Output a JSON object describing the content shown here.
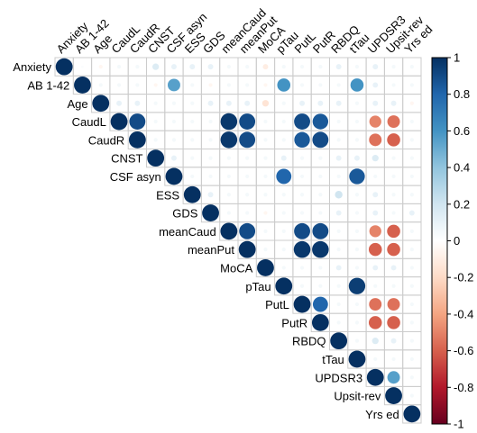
{
  "chart_data": {
    "type": "heatmap",
    "subtype": "correlation-upper-triangle",
    "marker": "circle",
    "title": "",
    "variables": [
      "Anxiety",
      "AB 1-42",
      "Age",
      "CaudL",
      "CaudR",
      "CNST",
      "CSF asyn",
      "ESS",
      "GDS",
      "meanCaud",
      "meanPut",
      "MoCA",
      "pTau",
      "PutL",
      "PutR",
      "RBDQ",
      "tTau",
      "UPDSR3",
      "Upsit-rev",
      "Yrs ed"
    ],
    "value_range": [
      -1,
      1
    ],
    "legend": {
      "position": "right",
      "ticks": [
        1,
        0.8,
        0.6,
        0.4,
        0.2,
        0,
        -0.2,
        -0.4,
        -0.6,
        -0.8,
        -1
      ],
      "tick_labels": [
        "1",
        "0.8",
        "0.6",
        "0.4",
        "0.2",
        "0",
        "-0.2",
        "-0.4",
        "-0.6",
        "-0.8",
        "-1"
      ],
      "colors": [
        "#053061",
        "#2166ac",
        "#4393c3",
        "#92c5de",
        "#d1e5f0",
        "#ffffff",
        "#fddbc7",
        "#f4a582",
        "#d6604d",
        "#b2182b",
        "#67001f"
      ]
    },
    "grid": true,
    "matrix": [
      [
        1,
        0.02,
        -0.05,
        0.05,
        0.05,
        0.15,
        0.1,
        0.1,
        0.1,
        0.05,
        0.05,
        -0.1,
        0.05,
        0.05,
        0.05,
        0.1,
        0.05,
        0.1,
        0.05,
        0.05
      ],
      [
        0.02,
        1,
        0.05,
        0.05,
        0.05,
        -0.05,
        0.55,
        0.05,
        -0.05,
        0.05,
        0.05,
        -0.05,
        0.6,
        0.05,
        0.05,
        0.05,
        0.6,
        0.1,
        0.05,
        0.05
      ],
      [
        -0.05,
        0.05,
        1,
        0.1,
        0.1,
        0.05,
        0.05,
        0.05,
        0.1,
        0.1,
        0.1,
        -0.15,
        0.05,
        0.1,
        0.1,
        0.1,
        0.05,
        0.1,
        0.1,
        -0.05
      ],
      [
        0.05,
        0.05,
        0.1,
        1,
        0.9,
        0.05,
        0.05,
        0.05,
        0.05,
        0.97,
        0.9,
        0.05,
        0.05,
        0.9,
        0.85,
        0.05,
        0.05,
        -0.5,
        -0.55,
        0.05
      ],
      [
        0.05,
        0.05,
        0.1,
        0.9,
        1,
        0.05,
        0.05,
        0.05,
        0.05,
        0.97,
        0.9,
        0.05,
        0.05,
        0.85,
        0.9,
        0.05,
        0.05,
        -0.55,
        -0.6,
        0.05
      ],
      [
        0.15,
        -0.05,
        0.05,
        0.05,
        0.05,
        1,
        0.1,
        0.05,
        0.05,
        0.05,
        0.05,
        0.05,
        0.1,
        0.05,
        0.05,
        0.1,
        0.1,
        0.15,
        0.05,
        0.05
      ],
      [
        0.1,
        0.55,
        0.05,
        0.05,
        0.05,
        0.1,
        1,
        0.05,
        0.05,
        0.05,
        0.05,
        0.05,
        0.8,
        0.05,
        0.05,
        0.05,
        0.85,
        0.05,
        0.05,
        0.05
      ],
      [
        0.1,
        0.05,
        0.05,
        0.05,
        0.05,
        0.05,
        0.05,
        1,
        0.1,
        0.05,
        0.05,
        0.05,
        0.05,
        0.05,
        0.05,
        0.2,
        0.05,
        0.1,
        0.05,
        0.05
      ],
      [
        0.1,
        -0.05,
        0.1,
        0.05,
        0.05,
        0.05,
        0.05,
        0.1,
        1,
        0.05,
        0.05,
        -0.05,
        0.05,
        0.05,
        0.05,
        0.1,
        0.05,
        0.1,
        0.05,
        0.1
      ],
      [
        0.05,
        0.05,
        0.1,
        0.97,
        0.97,
        0.05,
        0.05,
        0.05,
        0.05,
        1,
        0.9,
        0.05,
        0.05,
        0.9,
        0.9,
        0.05,
        0.05,
        -0.5,
        -0.6,
        0.05
      ],
      [
        0.05,
        0.05,
        0.1,
        0.9,
        0.9,
        0.05,
        0.05,
        0.05,
        0.05,
        0.9,
        1,
        0.05,
        0.05,
        0.97,
        0.97,
        0.05,
        0.05,
        -0.6,
        -0.6,
        0.05
      ],
      [
        -0.1,
        -0.05,
        -0.15,
        0.05,
        0.05,
        0.05,
        0.05,
        0.05,
        -0.05,
        0.05,
        0.05,
        1,
        0.05,
        0.05,
        0.05,
        0.1,
        0.05,
        0.1,
        0.1,
        0.05
      ],
      [
        0.05,
        0.6,
        0.05,
        0.05,
        0.05,
        0.1,
        0.8,
        0.05,
        0.05,
        0.05,
        0.05,
        0.05,
        1,
        0.05,
        0.05,
        0.05,
        0.95,
        0.05,
        0.05,
        0.05
      ],
      [
        0.05,
        0.05,
        0.1,
        0.9,
        0.85,
        0.05,
        0.05,
        0.05,
        0.05,
        0.9,
        0.97,
        0.05,
        0.05,
        1,
        0.8,
        0.05,
        0.05,
        -0.55,
        -0.55,
        0.05
      ],
      [
        0.05,
        0.05,
        0.1,
        0.85,
        0.9,
        0.05,
        0.05,
        0.05,
        0.05,
        0.9,
        0.97,
        0.05,
        0.05,
        0.8,
        1,
        0.05,
        0.05,
        -0.6,
        -0.6,
        0.05
      ],
      [
        0.1,
        0.05,
        0.1,
        0.05,
        0.05,
        0.1,
        0.05,
        0.2,
        0.1,
        0.05,
        0.05,
        0.1,
        0.05,
        0.05,
        0.05,
        1,
        0.05,
        0.15,
        0.1,
        0.05
      ],
      [
        0.05,
        0.6,
        0.05,
        0.05,
        0.05,
        0.1,
        0.85,
        0.05,
        0.05,
        0.05,
        0.05,
        0.05,
        0.95,
        0.05,
        0.05,
        0.05,
        1,
        0.05,
        0.05,
        0.05
      ],
      [
        0.1,
        0.1,
        0.1,
        -0.5,
        -0.55,
        0.15,
        0.05,
        0.1,
        0.1,
        -0.5,
        -0.6,
        0.1,
        0.05,
        -0.55,
        -0.6,
        0.15,
        0.05,
        1,
        0.55,
        0.05
      ],
      [
        0.05,
        0.05,
        0.1,
        -0.55,
        -0.6,
        0.05,
        0.05,
        0.05,
        0.05,
        -0.6,
        -0.6,
        0.1,
        0.05,
        -0.55,
        -0.6,
        0.1,
        0.05,
        0.55,
        1,
        0.05
      ],
      [
        0.05,
        0.05,
        -0.05,
        0.05,
        0.05,
        0.05,
        0.05,
        0.05,
        0.1,
        0.05,
        0.05,
        0.05,
        0.05,
        0.05,
        0.05,
        0.05,
        0.05,
        0.05,
        0.05,
        1
      ]
    ]
  }
}
